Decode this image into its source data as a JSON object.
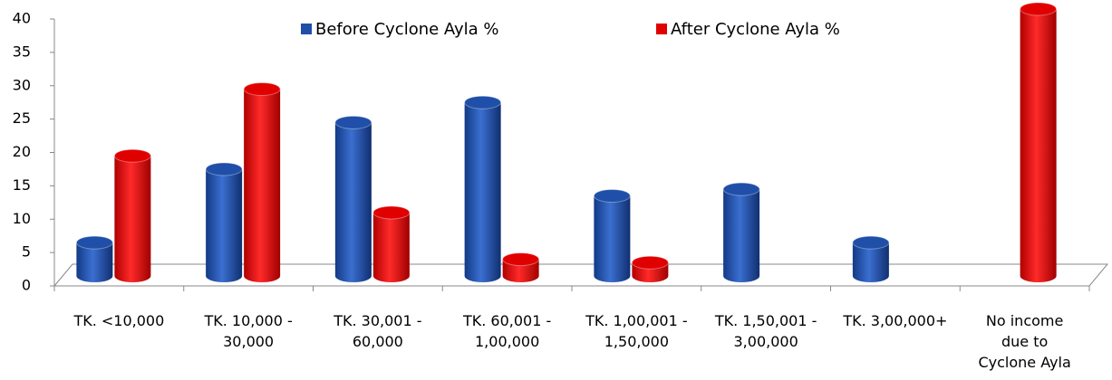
{
  "chart_data": {
    "type": "bar3d",
    "categories": [
      "TK. <10,000",
      "TK. 10,000 -\n30,000",
      "TK. 30,001 -\n60,000",
      "TK. 60,001 -\n1,00,000",
      "TK. 1,00,001 -\n1,50,000",
      "TK. 1,50,001 -\n3,00,000",
      "TK. 3,00,000+",
      "No income\ndue to\nCyclone Ayla"
    ],
    "series": [
      {
        "name": "Before Cyclone Ayla %",
        "color": "#1f4fa8",
        "values": [
          5,
          16,
          23,
          26,
          12,
          13,
          5,
          null
        ]
      },
      {
        "name": "After Cyclone Ayla %",
        "color": "#e00000",
        "values": [
          18,
          28,
          9.5,
          2.5,
          2,
          null,
          null,
          40
        ]
      }
    ],
    "ylim": [
      0,
      40
    ],
    "yticks": [
      0,
      5,
      10,
      15,
      20,
      25,
      30,
      35,
      40
    ],
    "legend": "top"
  }
}
